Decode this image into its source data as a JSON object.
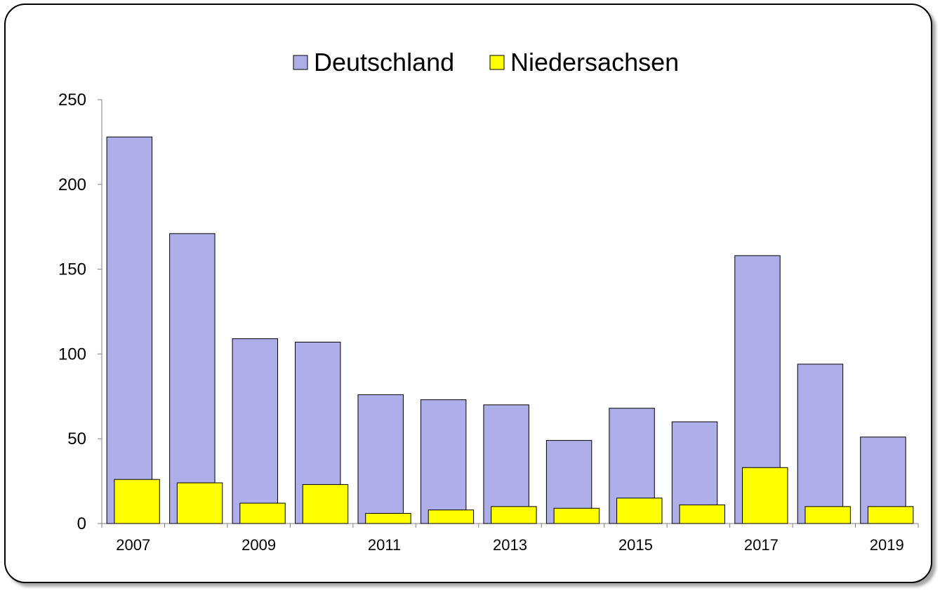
{
  "chart_data": {
    "type": "bar",
    "categories": [
      "2007",
      "2008",
      "2009",
      "2010",
      "2011",
      "2012",
      "2013",
      "2014",
      "2015",
      "2016",
      "2017",
      "2018",
      "2019"
    ],
    "x_tick_labels": [
      "2007",
      "",
      "2009",
      "",
      "2011",
      "",
      "2013",
      "",
      "2015",
      "",
      "2017",
      "",
      "2019"
    ],
    "series": [
      {
        "name": "Deutschland",
        "color": "#aeaeeb",
        "values": [
          228,
          171,
          109,
          107,
          76,
          73,
          70,
          49,
          68,
          60,
          158,
          94,
          51
        ]
      },
      {
        "name": "Niedersachsen",
        "color": "#ffff00",
        "values": [
          26,
          24,
          12,
          23,
          6,
          8,
          10,
          9,
          15,
          11,
          33,
          10,
          10
        ]
      }
    ],
    "title": "",
    "xlabel": "",
    "ylabel": "",
    "ylim": [
      0,
      250
    ],
    "y_ticks": [
      0,
      50,
      100,
      150,
      200,
      250
    ],
    "grid": false,
    "legend_position": "top",
    "overlapping_bars": true
  }
}
